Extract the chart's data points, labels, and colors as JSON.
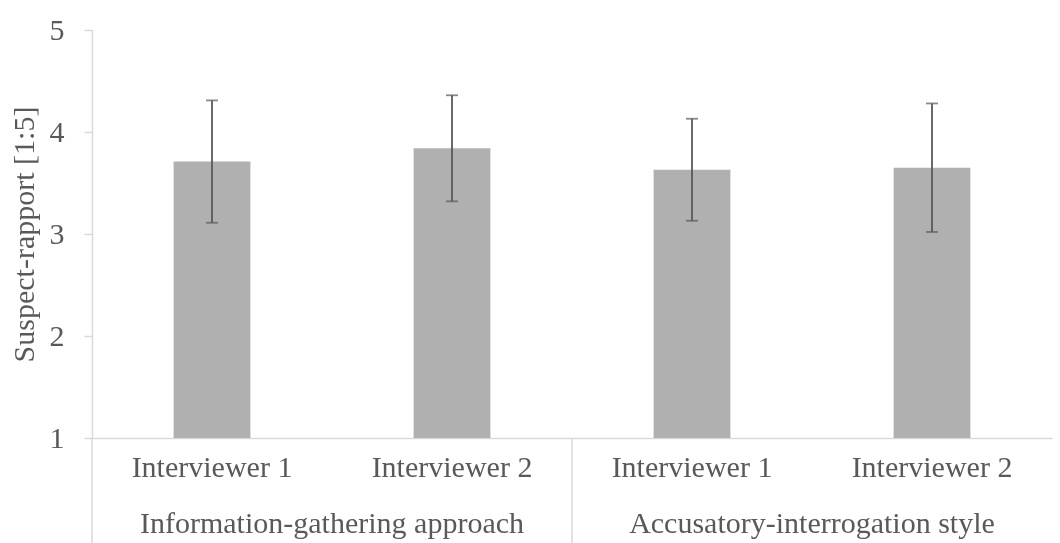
{
  "chart_data": {
    "type": "bar",
    "ylabel": "Suspect-rapport [1:5]",
    "categories": [
      "Interviewer 1",
      "Interviewer 2",
      "Interviewer 1",
      "Interviewer 2"
    ],
    "values": [
      3.71,
      3.84,
      3.63,
      3.65
    ],
    "errors": [
      0.6,
      0.52,
      0.5,
      0.63
    ],
    "color": "#b0b0b0",
    "ylim": [
      1,
      5
    ],
    "yticks": [
      1,
      2,
      3,
      4,
      5
    ],
    "annotations": [
      "Information-gathering approach",
      "Accusatory-interrogation style"
    ]
  }
}
